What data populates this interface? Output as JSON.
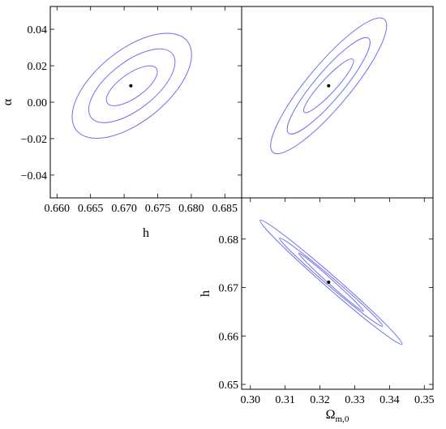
{
  "chart_data": [
    {
      "type": "contour",
      "panel": "top-left",
      "xlabel": "h",
      "ylabel": "α",
      "xlim": [
        0.659,
        0.6875
      ],
      "ylim": [
        -0.0525,
        0.0525
      ],
      "xticks": [
        {
          "v": 0.66,
          "label": "0.660"
        },
        {
          "v": 0.665,
          "label": "0.665"
        },
        {
          "v": 0.67,
          "label": "0.670"
        },
        {
          "v": 0.675,
          "label": "0.675"
        },
        {
          "v": 0.68,
          "label": "0.680"
        },
        {
          "v": 0.685,
          "label": "0.685"
        }
      ],
      "yticks": [
        {
          "v": 0.04,
          "label": "0.04"
        },
        {
          "v": 0.02,
          "label": "0.02"
        },
        {
          "v": 0.0,
          "label": "0.00"
        },
        {
          "v": -0.02,
          "label": "−0.02"
        },
        {
          "v": -0.04,
          "label": "−0.04"
        }
      ],
      "best_fit": [
        0.671,
        0.009
      ],
      "contours": [
        {
          "center": [
            0.67115,
            0.009
          ],
          "extreme": [
            0.6794,
            0.0335
          ],
          "semi_minor": 0.0053
        },
        {
          "center": [
            0.67115,
            0.009
          ],
          "extreme": [
            0.6772,
            0.0265
          ],
          "semi_minor": 0.0035
        },
        {
          "center": [
            0.67115,
            0.009
          ],
          "extreme": [
            0.6748,
            0.0185
          ],
          "semi_minor": 0.0018
        }
      ]
    },
    {
      "type": "contour",
      "panel": "top-right",
      "xlabel": "",
      "ylabel": "",
      "xlim": [
        0.2975,
        0.3525
      ],
      "ylim": [
        -0.0525,
        0.0525
      ],
      "best_fit": [
        0.3225,
        0.009
      ],
      "contours": [
        {
          "center": [
            0.3225,
            0.009
          ],
          "extreme": [
            0.3385,
            0.0455
          ],
          "semi_minor": 0.0061
        },
        {
          "center": [
            0.3225,
            0.009
          ],
          "extreme": [
            0.334,
            0.035
          ],
          "semi_minor": 0.004
        },
        {
          "center": [
            0.3225,
            0.009
          ],
          "extreme": [
            0.3295,
            0.0235
          ],
          "semi_minor": 0.0021
        }
      ]
    },
    {
      "type": "contour",
      "panel": "bottom-right",
      "xlabel": "Ω",
      "xlabel_sub": "m,0",
      "ylabel": "h",
      "xlim": [
        0.2975,
        0.3525
      ],
      "ylim": [
        0.649,
        0.6885
      ],
      "xticks": [
        {
          "v": 0.3,
          "label": "0.30"
        },
        {
          "v": 0.31,
          "label": "0.31"
        },
        {
          "v": 0.32,
          "label": "0.32"
        },
        {
          "v": 0.33,
          "label": "0.33"
        },
        {
          "v": 0.34,
          "label": "0.34"
        },
        {
          "v": 0.35,
          "label": "0.35"
        }
      ],
      "yticks": [
        {
          "v": 0.68,
          "label": "0.68"
        },
        {
          "v": 0.67,
          "label": "0.67"
        },
        {
          "v": 0.66,
          "label": "0.66"
        },
        {
          "v": 0.65,
          "label": "0.65"
        }
      ],
      "best_fit": [
        0.3225,
        0.6711
      ],
      "contours": [
        {
          "center": [
            0.3232,
            0.6711
          ],
          "extreme": [
            0.3436,
            0.6583
          ],
          "semi_minor": 0.0018
        },
        {
          "center": [
            0.3232,
            0.6711
          ],
          "extreme": [
            0.338,
            0.662
          ],
          "semi_minor": 0.0012
        },
        {
          "center": [
            0.3232,
            0.6711
          ],
          "extreme": [
            0.3325,
            0.6651
          ],
          "semi_minor": 0.0007
        }
      ]
    }
  ]
}
